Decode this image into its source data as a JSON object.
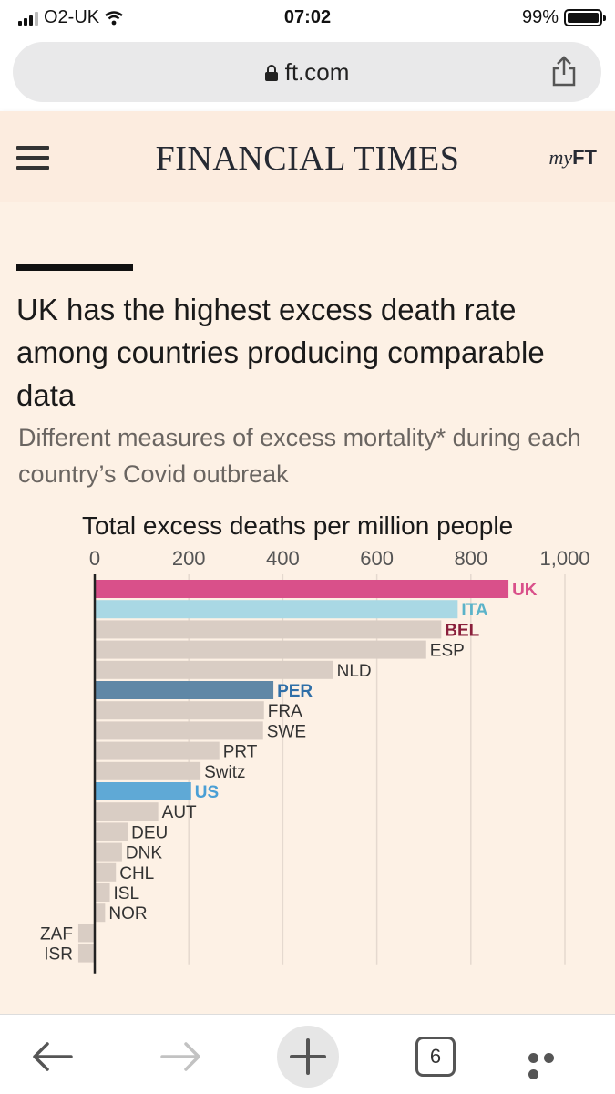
{
  "status_bar": {
    "carrier": "O2-UK",
    "time": "07:02",
    "battery": "99%"
  },
  "browser": {
    "url": "ft.com",
    "tab_count": "6"
  },
  "header": {
    "masthead": "FINANCIAL TIMES",
    "myft_prefix": "my",
    "myft_suffix": "FT"
  },
  "article": {
    "headline": "UK has the highest excess death rate among countries producing comparable data",
    "subtitle": "Different measures of excess mortality* during each country’s Covid outbreak"
  },
  "colors": {
    "background": "#fdf1e5",
    "bar_default": "#d9cdc4",
    "UK": "#d9508a",
    "ITA": "#a9d8e4",
    "BEL": "#8a1f3b",
    "PER": "#5f87a6",
    "US": "#5fa9d6",
    "gridline": "#e5d9cf",
    "axis": "#222222"
  },
  "chart_data": {
    "type": "bar",
    "orientation": "horizontal",
    "title": "Total excess deaths per million people",
    "x_ticks": [
      "0",
      "200",
      "400",
      "600",
      "800",
      "1,000"
    ],
    "xlim": [
      0,
      1000
    ],
    "grid": true,
    "categories": [
      "UK",
      "ITA",
      "BEL",
      "ESP",
      "NLD",
      "PER",
      "FRA",
      "SWE",
      "PRT",
      "Switz",
      "US",
      "AUT",
      "DEU",
      "DNK",
      "CHL",
      "ISL",
      "NOR",
      "ZAF",
      "ISR"
    ],
    "values": [
      880,
      772,
      737,
      705,
      507,
      380,
      360,
      358,
      265,
      225,
      205,
      135,
      70,
      58,
      45,
      32,
      22,
      -35,
      -35
    ],
    "highlight": {
      "UK": "#d9508a",
      "ITA": "#a9d8e4",
      "BEL": "#d9cdc4",
      "PER": "#5f87a6",
      "US": "#5fa9d6"
    },
    "label_colors": {
      "UK": "#d9508a",
      "ITA": "#5bb3c9",
      "BEL": "#8a1f3b",
      "PER": "#2f6fa8",
      "US": "#4a9fd5"
    }
  }
}
